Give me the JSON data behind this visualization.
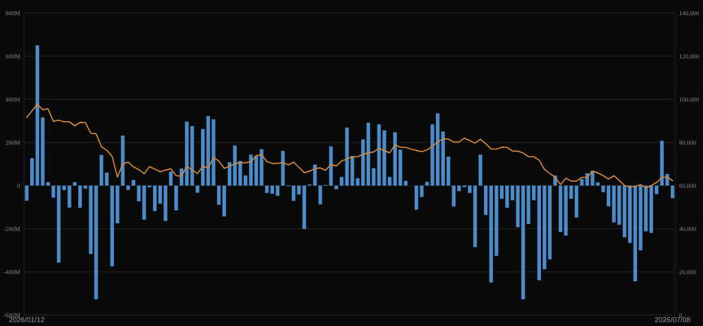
{
  "chart_data": {
    "type": "bar",
    "categories": [
      "2026/01/12",
      null,
      null,
      null,
      null,
      null,
      null,
      null,
      null,
      null,
      null,
      null,
      null,
      null,
      null,
      null,
      null,
      null,
      null,
      null,
      null,
      null,
      null,
      null,
      null,
      null,
      null,
      null,
      null,
      null,
      null,
      null,
      null,
      null,
      null,
      null,
      null,
      null,
      null,
      null,
      null,
      null,
      null,
      null,
      null,
      null,
      null,
      null,
      null,
      null,
      null,
      null,
      null,
      null,
      null,
      null,
      null,
      null,
      null,
      null,
      null,
      null,
      null,
      null,
      null,
      null,
      null,
      null,
      null,
      null,
      null,
      null,
      null,
      null,
      null,
      null,
      null,
      null,
      null,
      null,
      null,
      null,
      null,
      null,
      null,
      null,
      null,
      null,
      null,
      null,
      null,
      null,
      null,
      null,
      null,
      null,
      null,
      null,
      null,
      null,
      null,
      null,
      null,
      null,
      null,
      null,
      null,
      null,
      null,
      null,
      null,
      null,
      null,
      null,
      null,
      null,
      null,
      null,
      null,
      null,
      null,
      "2026/07/08"
    ],
    "series": [
      {
        "color": "#4d8ccb",
        "values": [
          -70,
          127,
          650,
          316,
          16,
          -56,
          -357,
          -21,
          -102,
          16,
          -103,
          -14,
          -317,
          -527,
          142,
          60,
          -374,
          -175,
          232,
          -20,
          26,
          -73,
          -158,
          -8,
          -118,
          -84,
          -164,
          65,
          -115,
          79,
          297,
          276,
          -33,
          262,
          322,
          307,
          -89,
          -143,
          109,
          186,
          114,
          47,
          144,
          138,
          169,
          -34,
          -38,
          -47,
          161,
          -3,
          -71,
          -41,
          -201,
          5,
          98,
          -87,
          3,
          182,
          -17,
          40,
          269,
          137,
          34,
          214,
          291,
          81,
          284,
          256,
          40,
          247,
          167,
          22,
          0,
          -112,
          -53,
          18,
          284,
          335,
          251,
          134,
          -97,
          -26,
          -7,
          -34,
          -285,
          144,
          -136,
          -449,
          -326,
          -61,
          -103,
          -68,
          -193,
          -527,
          -178,
          -68,
          -439,
          -388,
          -342,
          47,
          -215,
          -232,
          -61,
          -148,
          30,
          57,
          68,
          15,
          -30,
          -96,
          -171,
          -182,
          -240,
          -266,
          -444,
          -300,
          -212,
          -219,
          -40,
          208,
          54,
          -59
        ]
      },
      {
        "type": "line",
        "axis": "y2",
        "color": "#d98a3a",
        "values": [
          91600,
          94700,
          97700,
          95200,
          95600,
          89800,
          90300,
          89600,
          89600,
          87700,
          89300,
          89200,
          84300,
          84000,
          78000,
          76400,
          73600,
          64000,
          70100,
          70900,
          68700,
          67400,
          65500,
          68800,
          67600,
          66400,
          67200,
          67800,
          64600,
          64400,
          69000,
          67200,
          65600,
          69000,
          68200,
          73000,
          71400,
          68000,
          69000,
          70100,
          70600,
          70600,
          71100,
          73800,
          74400,
          71100,
          70300,
          70300,
          70700,
          69600,
          70900,
          68500,
          66000,
          66700,
          67900,
          68200,
          67100,
          69800,
          69100,
          71400,
          72300,
          73300,
          73400,
          74400,
          75200,
          75600,
          77300,
          76200,
          75200,
          78800,
          77800,
          77700,
          76900,
          76300,
          75700,
          76500,
          78300,
          80200,
          81700,
          81600,
          80200,
          80200,
          82000,
          80900,
          79700,
          81500,
          79400,
          77000,
          76900,
          77800,
          77700,
          76000,
          76000,
          75100,
          73400,
          73400,
          71800,
          67500,
          65600,
          63900,
          60500,
          63400,
          62100,
          62100,
          63800,
          63800,
          66700,
          65900,
          64600,
          63000,
          64600,
          62400,
          60000,
          59500,
          59600,
          60500,
          58900,
          60100,
          61400,
          63900,
          63900,
          62300
        ]
      }
    ],
    "ylim": [
      -600,
      800
    ],
    "yticks": [
      {
        "value": -600,
        "label": "-600M"
      },
      {
        "value": -400,
        "label": "-400M"
      },
      {
        "value": -200,
        "label": "-200M"
      },
      0,
      {
        "value": 200,
        "label": "200M"
      },
      {
        "value": 400,
        "label": "400M"
      },
      {
        "value": 600,
        "label": "600M"
      },
      {
        "value": 800,
        "label": "800M"
      }
    ],
    "y2lim": [
      0,
      140000
    ],
    "y2ticks": [
      0,
      {
        "value": 20000,
        "label": "20,000"
      },
      {
        "value": 40000,
        "label": "40,000"
      },
      {
        "value": 60000,
        "label": "60,000"
      },
      {
        "value": 80000,
        "label": "80,000"
      },
      {
        "value": 100000,
        "label": "100,000"
      },
      {
        "value": 120000,
        "label": "120,000"
      },
      {
        "value": 140000,
        "label": "140,000"
      }
    ],
    "grid": "y"
  }
}
